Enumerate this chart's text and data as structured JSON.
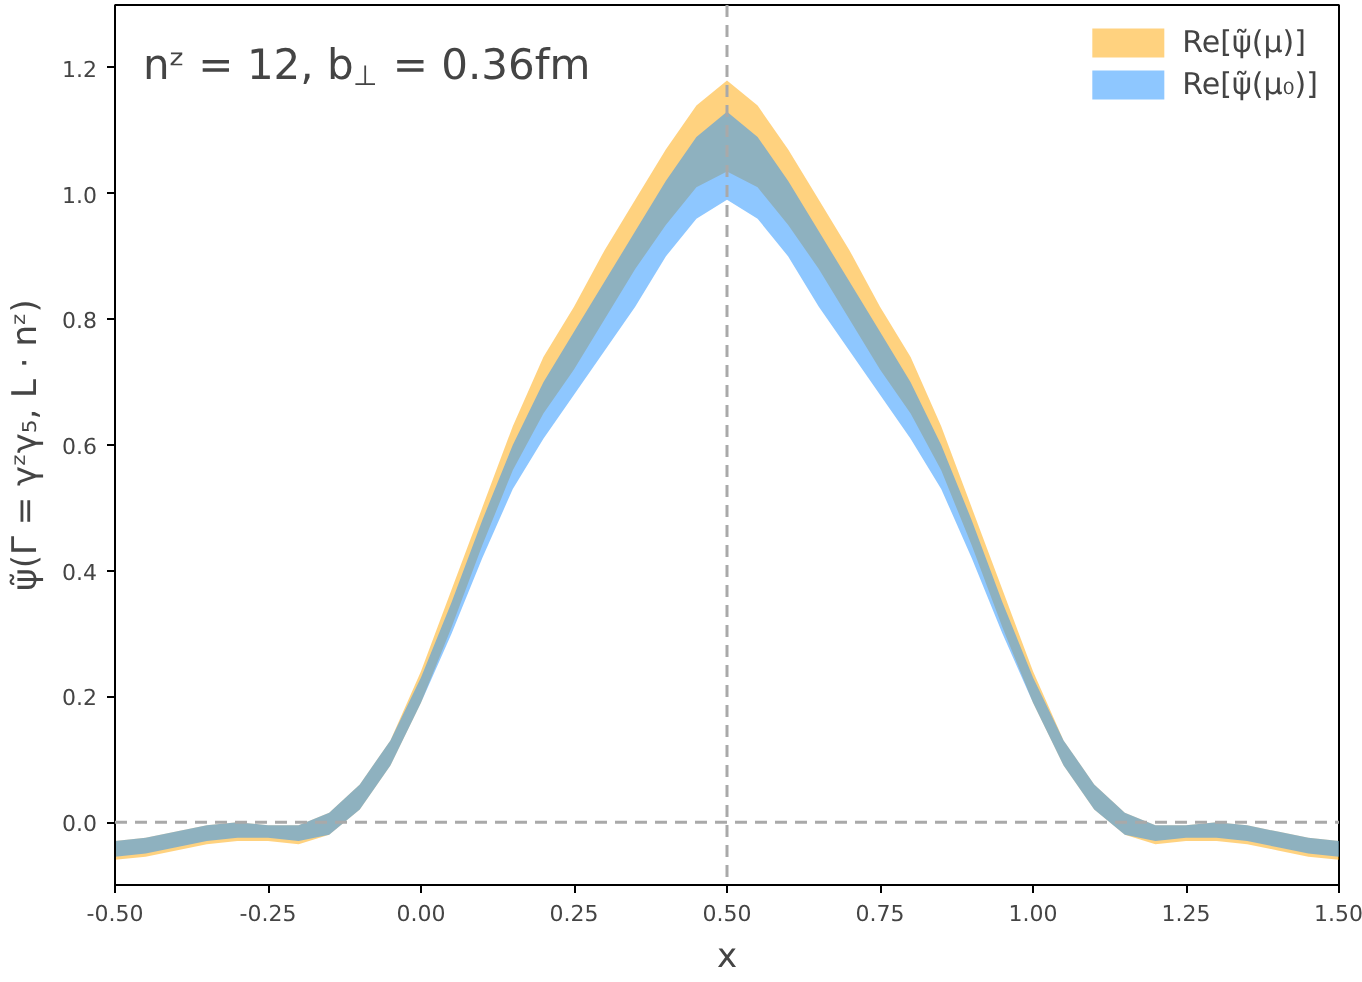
{
  "chart_data": {
    "type": "area",
    "xlabel": "x",
    "ylabel": "ψ̃(Γ = γᶻγ₅, L · nᶻ)",
    "annotations": [
      "nᶻ = 12, b$_{⊥}$ = 0.36fm"
    ],
    "x": [
      -0.5,
      -0.45,
      -0.4,
      -0.35,
      -0.3,
      -0.25,
      -0.2,
      -0.15,
      -0.1,
      -0.05,
      0,
      0.05,
      0.1,
      0.15,
      0.2,
      0.25,
      0.3,
      0.35,
      0.4,
      0.45,
      0.5,
      0.55,
      0.6,
      0.65,
      0.7,
      0.75,
      0.8,
      0.85,
      0.9,
      0.95,
      1,
      1.05,
      1.1,
      1.15,
      1.2,
      1.25,
      1.3,
      1.35,
      1.4,
      1.45,
      1.5
    ],
    "series": [
      {
        "name": "Re[ψ̃(μ)]",
        "color": "#ffa500",
        "values": [
          null,
          null,
          null,
          null,
          null,
          null,
          null,
          null,
          null,
          null,
          null,
          null,
          null,
          null,
          null,
          null,
          null,
          null,
          null,
          null,
          null,
          null,
          null,
          null,
          null,
          null,
          null,
          null,
          null,
          null,
          null,
          null,
          null,
          null,
          null,
          null,
          null,
          null,
          null,
          null,
          null
        ],
        "lower": [
          -0.06,
          -0.055,
          -0.045,
          -0.035,
          -0.03,
          -0.03,
          -0.035,
          -0.02,
          0.02,
          0.09,
          0.19,
          0.31,
          0.44,
          0.56,
          0.65,
          0.72,
          0.8,
          0.88,
          0.95,
          1.01,
          1.035,
          1.01,
          0.95,
          0.88,
          0.8,
          0.72,
          0.65,
          0.56,
          0.44,
          0.31,
          0.19,
          0.09,
          0.02,
          -0.02,
          -0.035,
          -0.03,
          -0.03,
          -0.035,
          -0.045,
          -0.055,
          -0.06
        ],
        "upper": [
          -0.03,
          -0.025,
          -0.015,
          -0.005,
          0.0,
          -0.005,
          -0.005,
          0.015,
          0.06,
          0.13,
          0.24,
          0.37,
          0.5,
          0.63,
          0.74,
          0.82,
          0.91,
          0.99,
          1.07,
          1.14,
          1.18,
          1.14,
          1.07,
          0.99,
          0.91,
          0.82,
          0.74,
          0.63,
          0.5,
          0.37,
          0.24,
          0.13,
          0.06,
          0.015,
          -0.005,
          -0.005,
          0.0,
          -0.005,
          -0.015,
          -0.025,
          -0.03
        ]
      },
      {
        "name": "Re[ψ̃(μ₀)]",
        "color": "#1e90ff",
        "values": [
          null,
          null,
          null,
          null,
          null,
          null,
          null,
          null,
          null,
          null,
          null,
          null,
          null,
          null,
          null,
          null,
          null,
          null,
          null,
          null,
          null,
          null,
          null,
          null,
          null,
          null,
          null,
          null,
          null,
          null,
          null,
          null,
          null,
          null,
          null,
          null,
          null,
          null,
          null,
          null,
          null
        ],
        "lower": [
          -0.055,
          -0.05,
          -0.04,
          -0.03,
          -0.025,
          -0.025,
          -0.03,
          -0.02,
          0.02,
          0.09,
          0.19,
          0.3,
          0.42,
          0.53,
          0.61,
          0.68,
          0.75,
          0.82,
          0.9,
          0.96,
          0.99,
          0.96,
          0.9,
          0.82,
          0.75,
          0.68,
          0.61,
          0.53,
          0.42,
          0.3,
          0.19,
          0.09,
          0.02,
          -0.02,
          -0.03,
          -0.025,
          -0.025,
          -0.03,
          -0.04,
          -0.05,
          -0.055
        ],
        "upper": [
          -0.03,
          -0.025,
          -0.015,
          -0.005,
          0.0,
          -0.005,
          -0.005,
          0.015,
          0.06,
          0.13,
          0.23,
          0.35,
          0.48,
          0.6,
          0.7,
          0.78,
          0.86,
          0.94,
          1.02,
          1.09,
          1.13,
          1.09,
          1.02,
          0.94,
          0.86,
          0.78,
          0.7,
          0.6,
          0.48,
          0.35,
          0.23,
          0.13,
          0.06,
          0.015,
          -0.005,
          -0.005,
          0.0,
          -0.005,
          -0.015,
          -0.025,
          -0.03
        ]
      }
    ],
    "xlim": [
      -0.5,
      1.5
    ],
    "xticks": [
      {
        "value": -0.5,
        "label": "-0.50"
      },
      {
        "value": -0.25,
        "label": "-0.25"
      },
      {
        "value": 0,
        "label": "0.00"
      },
      {
        "value": 0.25,
        "label": "0.25"
      },
      {
        "value": 0.5,
        "label": "0.50"
      },
      {
        "value": 0.75,
        "label": "0.75"
      },
      {
        "value": 1,
        "label": "1.00"
      },
      {
        "value": 1.25,
        "label": "1.25"
      },
      {
        "value": 1.5,
        "label": "1.50"
      }
    ],
    "ylim": [
      -0.1,
      1.3
    ],
    "yticks": [
      {
        "value": 0,
        "label": "0.0"
      },
      {
        "value": 0.2,
        "label": "0.2"
      },
      {
        "value": 0.4,
        "label": "0.4"
      },
      {
        "value": 0.6,
        "label": "0.6"
      },
      {
        "value": 0.8,
        "label": "0.8"
      },
      {
        "value": 1,
        "label": "1.0"
      },
      {
        "value": 1.2,
        "label": "1.2"
      }
    ],
    "ref_lines": [
      {
        "axis": "x",
        "value": 0.5,
        "color": "#a9a9a9",
        "line_style": "dashed"
      },
      {
        "axis": "y",
        "value": 0,
        "color": "#a9a9a9",
        "line_style": "dashed"
      }
    ],
    "grid": false,
    "legend": "top right"
  }
}
